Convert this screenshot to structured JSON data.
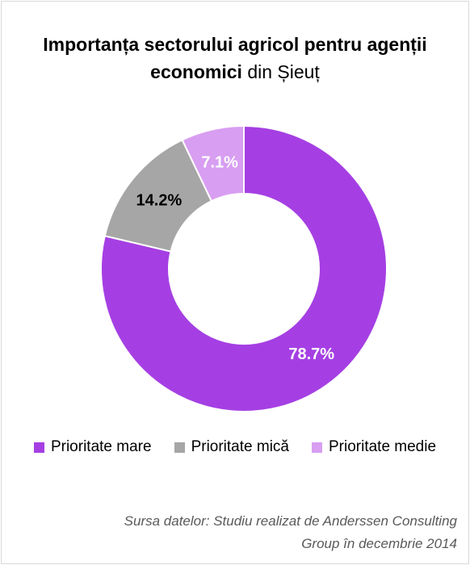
{
  "chart_data": {
    "type": "pie",
    "title_bold": "Importanța sectorului agricol pentru agenții economici",
    "title_rest": "din Șieuț",
    "donut": true,
    "slices": [
      {
        "label": "Prioritate mare",
        "value": 78.7,
        "display": "78.7%",
        "color": "#a53fe3",
        "label_color": "#ffffff"
      },
      {
        "label": "Prioritate mică",
        "value": 14.2,
        "display": "14.2%",
        "color": "#a6a6a6",
        "label_color": "#000000"
      },
      {
        "label": "Prioritate medie",
        "value": 7.1,
        "display": "7.1%",
        "color": "#d89ef1",
        "label_color": "#ffffff"
      }
    ],
    "legend_position": "bottom"
  },
  "source_note": "Sursa datelor: Studiu realizat de Anderssen Consulting Group în decembrie 2014"
}
